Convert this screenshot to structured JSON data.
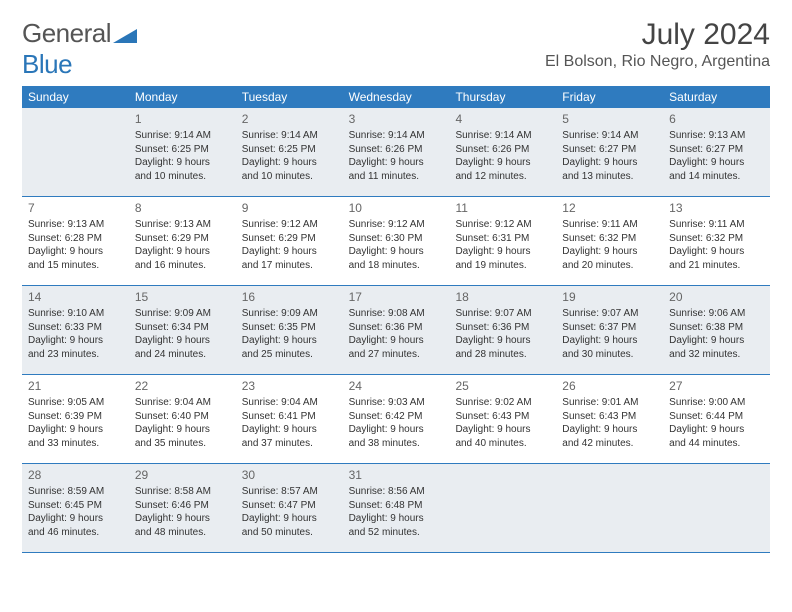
{
  "logo": {
    "general": "General",
    "blue": "Blue"
  },
  "title": "July 2024",
  "location": "El Bolson, Rio Negro, Argentina",
  "colors": {
    "header_bg": "#2f7bbf",
    "header_text": "#ffffff",
    "alt_bg": "#e9edf1",
    "border": "#2f7bbf",
    "page_bg": "#ffffff",
    "text": "#333333",
    "title_color": "#444444",
    "logo_blue": "#2a76b8"
  },
  "dow": [
    "Sunday",
    "Monday",
    "Tuesday",
    "Wednesday",
    "Thursday",
    "Friday",
    "Saturday"
  ],
  "weeks": [
    [
      null,
      {
        "n": "1",
        "sr": "Sunrise: 9:14 AM",
        "ss": "Sunset: 6:25 PM",
        "d1": "Daylight: 9 hours",
        "d2": "and 10 minutes."
      },
      {
        "n": "2",
        "sr": "Sunrise: 9:14 AM",
        "ss": "Sunset: 6:25 PM",
        "d1": "Daylight: 9 hours",
        "d2": "and 10 minutes."
      },
      {
        "n": "3",
        "sr": "Sunrise: 9:14 AM",
        "ss": "Sunset: 6:26 PM",
        "d1": "Daylight: 9 hours",
        "d2": "and 11 minutes."
      },
      {
        "n": "4",
        "sr": "Sunrise: 9:14 AM",
        "ss": "Sunset: 6:26 PM",
        "d1": "Daylight: 9 hours",
        "d2": "and 12 minutes."
      },
      {
        "n": "5",
        "sr": "Sunrise: 9:14 AM",
        "ss": "Sunset: 6:27 PM",
        "d1": "Daylight: 9 hours",
        "d2": "and 13 minutes."
      },
      {
        "n": "6",
        "sr": "Sunrise: 9:13 AM",
        "ss": "Sunset: 6:27 PM",
        "d1": "Daylight: 9 hours",
        "d2": "and 14 minutes."
      }
    ],
    [
      {
        "n": "7",
        "sr": "Sunrise: 9:13 AM",
        "ss": "Sunset: 6:28 PM",
        "d1": "Daylight: 9 hours",
        "d2": "and 15 minutes."
      },
      {
        "n": "8",
        "sr": "Sunrise: 9:13 AM",
        "ss": "Sunset: 6:29 PM",
        "d1": "Daylight: 9 hours",
        "d2": "and 16 minutes."
      },
      {
        "n": "9",
        "sr": "Sunrise: 9:12 AM",
        "ss": "Sunset: 6:29 PM",
        "d1": "Daylight: 9 hours",
        "d2": "and 17 minutes."
      },
      {
        "n": "10",
        "sr": "Sunrise: 9:12 AM",
        "ss": "Sunset: 6:30 PM",
        "d1": "Daylight: 9 hours",
        "d2": "and 18 minutes."
      },
      {
        "n": "11",
        "sr": "Sunrise: 9:12 AM",
        "ss": "Sunset: 6:31 PM",
        "d1": "Daylight: 9 hours",
        "d2": "and 19 minutes."
      },
      {
        "n": "12",
        "sr": "Sunrise: 9:11 AM",
        "ss": "Sunset: 6:32 PM",
        "d1": "Daylight: 9 hours",
        "d2": "and 20 minutes."
      },
      {
        "n": "13",
        "sr": "Sunrise: 9:11 AM",
        "ss": "Sunset: 6:32 PM",
        "d1": "Daylight: 9 hours",
        "d2": "and 21 minutes."
      }
    ],
    [
      {
        "n": "14",
        "sr": "Sunrise: 9:10 AM",
        "ss": "Sunset: 6:33 PM",
        "d1": "Daylight: 9 hours",
        "d2": "and 23 minutes."
      },
      {
        "n": "15",
        "sr": "Sunrise: 9:09 AM",
        "ss": "Sunset: 6:34 PM",
        "d1": "Daylight: 9 hours",
        "d2": "and 24 minutes."
      },
      {
        "n": "16",
        "sr": "Sunrise: 9:09 AM",
        "ss": "Sunset: 6:35 PM",
        "d1": "Daylight: 9 hours",
        "d2": "and 25 minutes."
      },
      {
        "n": "17",
        "sr": "Sunrise: 9:08 AM",
        "ss": "Sunset: 6:36 PM",
        "d1": "Daylight: 9 hours",
        "d2": "and 27 minutes."
      },
      {
        "n": "18",
        "sr": "Sunrise: 9:07 AM",
        "ss": "Sunset: 6:36 PM",
        "d1": "Daylight: 9 hours",
        "d2": "and 28 minutes."
      },
      {
        "n": "19",
        "sr": "Sunrise: 9:07 AM",
        "ss": "Sunset: 6:37 PM",
        "d1": "Daylight: 9 hours",
        "d2": "and 30 minutes."
      },
      {
        "n": "20",
        "sr": "Sunrise: 9:06 AM",
        "ss": "Sunset: 6:38 PM",
        "d1": "Daylight: 9 hours",
        "d2": "and 32 minutes."
      }
    ],
    [
      {
        "n": "21",
        "sr": "Sunrise: 9:05 AM",
        "ss": "Sunset: 6:39 PM",
        "d1": "Daylight: 9 hours",
        "d2": "and 33 minutes."
      },
      {
        "n": "22",
        "sr": "Sunrise: 9:04 AM",
        "ss": "Sunset: 6:40 PM",
        "d1": "Daylight: 9 hours",
        "d2": "and 35 minutes."
      },
      {
        "n": "23",
        "sr": "Sunrise: 9:04 AM",
        "ss": "Sunset: 6:41 PM",
        "d1": "Daylight: 9 hours",
        "d2": "and 37 minutes."
      },
      {
        "n": "24",
        "sr": "Sunrise: 9:03 AM",
        "ss": "Sunset: 6:42 PM",
        "d1": "Daylight: 9 hours",
        "d2": "and 38 minutes."
      },
      {
        "n": "25",
        "sr": "Sunrise: 9:02 AM",
        "ss": "Sunset: 6:43 PM",
        "d1": "Daylight: 9 hours",
        "d2": "and 40 minutes."
      },
      {
        "n": "26",
        "sr": "Sunrise: 9:01 AM",
        "ss": "Sunset: 6:43 PM",
        "d1": "Daylight: 9 hours",
        "d2": "and 42 minutes."
      },
      {
        "n": "27",
        "sr": "Sunrise: 9:00 AM",
        "ss": "Sunset: 6:44 PM",
        "d1": "Daylight: 9 hours",
        "d2": "and 44 minutes."
      }
    ],
    [
      {
        "n": "28",
        "sr": "Sunrise: 8:59 AM",
        "ss": "Sunset: 6:45 PM",
        "d1": "Daylight: 9 hours",
        "d2": "and 46 minutes."
      },
      {
        "n": "29",
        "sr": "Sunrise: 8:58 AM",
        "ss": "Sunset: 6:46 PM",
        "d1": "Daylight: 9 hours",
        "d2": "and 48 minutes."
      },
      {
        "n": "30",
        "sr": "Sunrise: 8:57 AM",
        "ss": "Sunset: 6:47 PM",
        "d1": "Daylight: 9 hours",
        "d2": "and 50 minutes."
      },
      {
        "n": "31",
        "sr": "Sunrise: 8:56 AM",
        "ss": "Sunset: 6:48 PM",
        "d1": "Daylight: 9 hours",
        "d2": "and 52 minutes."
      },
      null,
      null,
      null
    ]
  ]
}
